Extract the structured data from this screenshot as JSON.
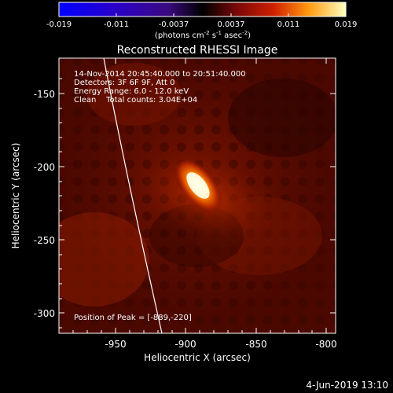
{
  "colorbar": {
    "ticks": [
      "-0.019",
      "-0.011",
      "-0.0037",
      "0.0037",
      "0.011",
      "0.019"
    ],
    "units_label": "(photons cm",
    "units_exp1": "-2",
    "units_mid": " s",
    "units_exp2": "-1",
    "units_tail": " asec",
    "units_exp3": "-2",
    "units_close": ")"
  },
  "plot": {
    "title": "Reconstructed RHESSI Image",
    "info_lines": [
      "14-Nov-2014 20:45:40.000 to 20:51:40.000",
      "Detectors: 3F 6F 9F, Att 0",
      "Energy Range: 6.0 - 12.0 keV",
      "Clean    Total counts: 3.04E+04"
    ],
    "peak_label": "Position of Peak = [-889,-220]",
    "xlabel": "Heliocentric X (arcsec)",
    "ylabel": "Heliocentric Y (arcsec)",
    "xticks": [
      "-950",
      "-900",
      "-850",
      "-800"
    ],
    "yticks": [
      "-150",
      "-200",
      "-250",
      "-300"
    ],
    "xrange": [
      -985,
      -800
    ],
    "yrange": [
      -315,
      -128
    ]
  },
  "footer": {
    "timestamp": "4-Jun-2019 13:10"
  }
}
